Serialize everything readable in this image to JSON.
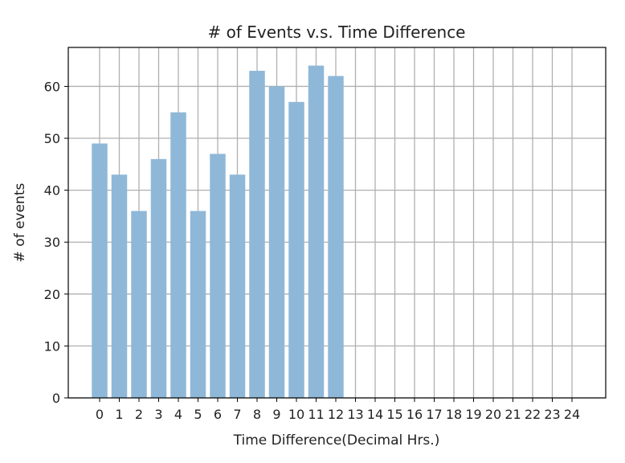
{
  "chart_data": {
    "type": "bar",
    "title": "# of Events v.s. Time Difference",
    "xlabel": "Time Difference(Decimal Hrs.)",
    "ylabel": "# of events",
    "categories": [
      "0",
      "1",
      "2",
      "3",
      "4",
      "5",
      "6",
      "7",
      "8",
      "9",
      "10",
      "11",
      "12",
      "13",
      "14",
      "15",
      "16",
      "17",
      "18",
      "19",
      "20",
      "21",
      "22",
      "23",
      "24"
    ],
    "values": [
      49,
      43,
      36,
      46,
      55,
      36,
      47,
      43,
      63,
      60,
      57,
      64,
      62,
      null,
      null,
      null,
      null,
      null,
      null,
      null,
      null,
      null,
      null,
      null,
      null
    ],
    "yticks": [
      0,
      10,
      20,
      30,
      40,
      50,
      60
    ],
    "ylim": [
      0,
      67.5
    ],
    "grid": true,
    "bar_color": "#8fb8d8",
    "grid_color": "#b0b0b0"
  }
}
